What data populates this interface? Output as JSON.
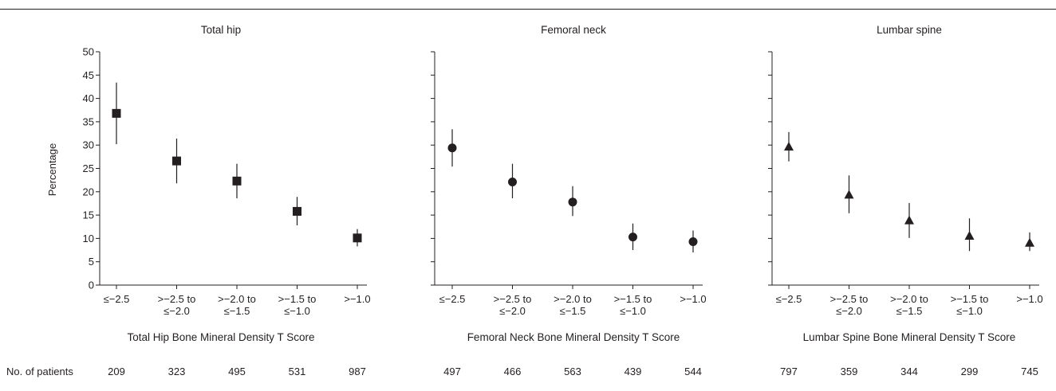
{
  "figure": {
    "patients_label": "No. of patients",
    "y_label": "Percentage"
  },
  "chart_data": [
    {
      "type": "scatter",
      "title": "Total hip",
      "xlabel": "Total Hip Bone Mineral Density T Score",
      "ylabel": "Percentage",
      "ylim": [
        0,
        50
      ],
      "yticks": [
        0,
        5,
        10,
        15,
        20,
        25,
        30,
        35,
        40,
        45,
        50
      ],
      "marker": "square",
      "categories": [
        [
          "≤−2.5"
        ],
        [
          ">−2.5 to",
          "≤−2.0"
        ],
        [
          ">−2.0 to",
          "≤−1.5"
        ],
        [
          ">−1.5 to",
          "≤−1.0"
        ],
        [
          ">−1.0"
        ]
      ],
      "values": [
        36.8,
        26.6,
        22.3,
        15.8,
        10.1
      ],
      "ci_low": [
        30.2,
        21.8,
        18.6,
        12.8,
        8.3
      ],
      "ci_high": [
        43.4,
        31.4,
        26.0,
        18.9,
        12.0
      ],
      "patients": [
        "209",
        "323",
        "495",
        "531",
        "987"
      ]
    },
    {
      "type": "scatter",
      "title": "Femoral neck",
      "xlabel": "Femoral Neck Bone Mineral Density T Score",
      "ylabel": "",
      "ylim": [
        0,
        50
      ],
      "yticks": [
        0,
        5,
        10,
        15,
        20,
        25,
        30,
        35,
        40,
        45,
        50
      ],
      "marker": "circle",
      "categories": [
        [
          "≤−2.5"
        ],
        [
          ">−2.5 to",
          "≤−2.0"
        ],
        [
          ">−2.0 to",
          "≤−1.5"
        ],
        [
          ">−1.5 to",
          "≤−1.0"
        ],
        [
          ">−1.0"
        ]
      ],
      "values": [
        29.4,
        22.1,
        17.8,
        10.3,
        9.3
      ],
      "ci_low": [
        25.4,
        18.6,
        14.8,
        7.5,
        7.0
      ],
      "ci_high": [
        33.4,
        26.0,
        21.2,
        13.2,
        11.7
      ],
      "patients": [
        "497",
        "466",
        "563",
        "439",
        "544"
      ]
    },
    {
      "type": "scatter",
      "title": "Lumbar spine",
      "xlabel": "Lumbar Spine Bone Mineral Density T Score",
      "ylabel": "",
      "ylim": [
        0,
        50
      ],
      "yticks": [
        0,
        5,
        10,
        15,
        20,
        25,
        30,
        35,
        40,
        45,
        50
      ],
      "marker": "triangle",
      "categories": [
        [
          "≤−2.5"
        ],
        [
          ">−2.5 to",
          "≤−2.0"
        ],
        [
          ">−2.0 to",
          "≤−1.5"
        ],
        [
          ">−1.5 to",
          "≤−1.0"
        ],
        [
          ">−1.0"
        ]
      ],
      "values": [
        29.6,
        19.3,
        13.8,
        10.5,
        9.0
      ],
      "ci_low": [
        26.5,
        15.4,
        10.1,
        7.3,
        7.3
      ],
      "ci_high": [
        32.8,
        23.5,
        17.6,
        14.3,
        11.3
      ],
      "patients": [
        "797",
        "359",
        "344",
        "299",
        "745"
      ]
    }
  ]
}
